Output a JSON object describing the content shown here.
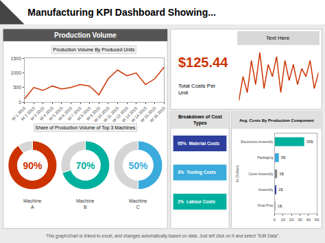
{
  "title": "Manufacturing KPI Dashboard Showing...",
  "annotations": [
    "Production Volume",
    "Share of Production Volume of Top 3 Machines",
    "This graph/chart is linked to excel, and changes automatically based on data. Just left click on it and select \"Edit Data\"."
  ],
  "chart_data": [
    {
      "type": "line",
      "title": "Production Volume By Produced Units",
      "categories": [
        "W 1 2015",
        "W 2 2015",
        "W 3 2015",
        "W 4 2015",
        "W 5 2015",
        "W 6 2015",
        "W 7 2015",
        "W 8 2015",
        "W 9 2015",
        "W 10 2015",
        "W 11 2015",
        "W 12 2015",
        "W 13 2015",
        "W 14 2015",
        "W 15 2015",
        "W 16 2015"
      ],
      "values": [
        100,
        500,
        400,
        550,
        450,
        500,
        600,
        550,
        250,
        800,
        1100,
        900,
        1000,
        600,
        800,
        1200
      ],
      "color": "#cc3300",
      "ylim": [
        0,
        1500
      ],
      "yticks": [
        0,
        500,
        1000,
        1500
      ],
      "grid": false
    },
    {
      "type": "pie",
      "title": "Machine\nA",
      "values": [
        90,
        10
      ],
      "value_labels": [
        "90%",
        null
      ],
      "colors": [
        "#cc3300",
        "#d5d5d5"
      ]
    },
    {
      "type": "pie",
      "title": "Machine\nB",
      "values": [
        70,
        30
      ],
      "value_labels": [
        "70%",
        null
      ],
      "colors": [
        "#00b09e",
        "#d5d5d5"
      ]
    },
    {
      "type": "pie",
      "title": "Machine\nC",
      "values": [
        50,
        50
      ],
      "value_labels": [
        "50%",
        null
      ],
      "colors": [
        "#3aabdc",
        "#d5d5d5"
      ]
    },
    {
      "type": "line",
      "title": "Text Here",
      "values": [
        8,
        14,
        10,
        18,
        12,
        20,
        11,
        17,
        14,
        19,
        10,
        18,
        13,
        17,
        12,
        16,
        14,
        18,
        11,
        15
      ],
      "color": "#cc3300",
      "tick_labels": false,
      "grid": false,
      "annotations": [
        "$125.44",
        "Total Costs Per\nUnit"
      ]
    },
    {
      "type": "table",
      "title": "Breakdown of Cost\nTypes",
      "annotations": [
        "95%  Material Costs",
        "3%  Tooling Costs",
        "2%  Labour Costs"
      ],
      "colors": [
        "#2e3f9e",
        "#3aabdc",
        "#00b09e"
      ]
    },
    {
      "type": "bar",
      "orientation": "horizontal",
      "title": "Avg. Costs By Production Component",
      "ylabel": "In Dollars",
      "categories": [
        "Electronics Assembly",
        "Packaging",
        "Cover Assembly",
        "Assembly",
        "Final Prep"
      ],
      "values": [
        35,
        5,
        3,
        2,
        1
      ],
      "value_labels": [
        "35$",
        "5$",
        "3$",
        "2$",
        "1$"
      ],
      "data_labels": true,
      "colors": [
        "#00b09e",
        "#3aabdc",
        "#888888",
        "#2e3f9e",
        "#888888"
      ],
      "xlim": [
        0,
        50
      ],
      "xticks": [
        0,
        10,
        20,
        30,
        40,
        50
      ],
      "grid": false
    }
  ]
}
